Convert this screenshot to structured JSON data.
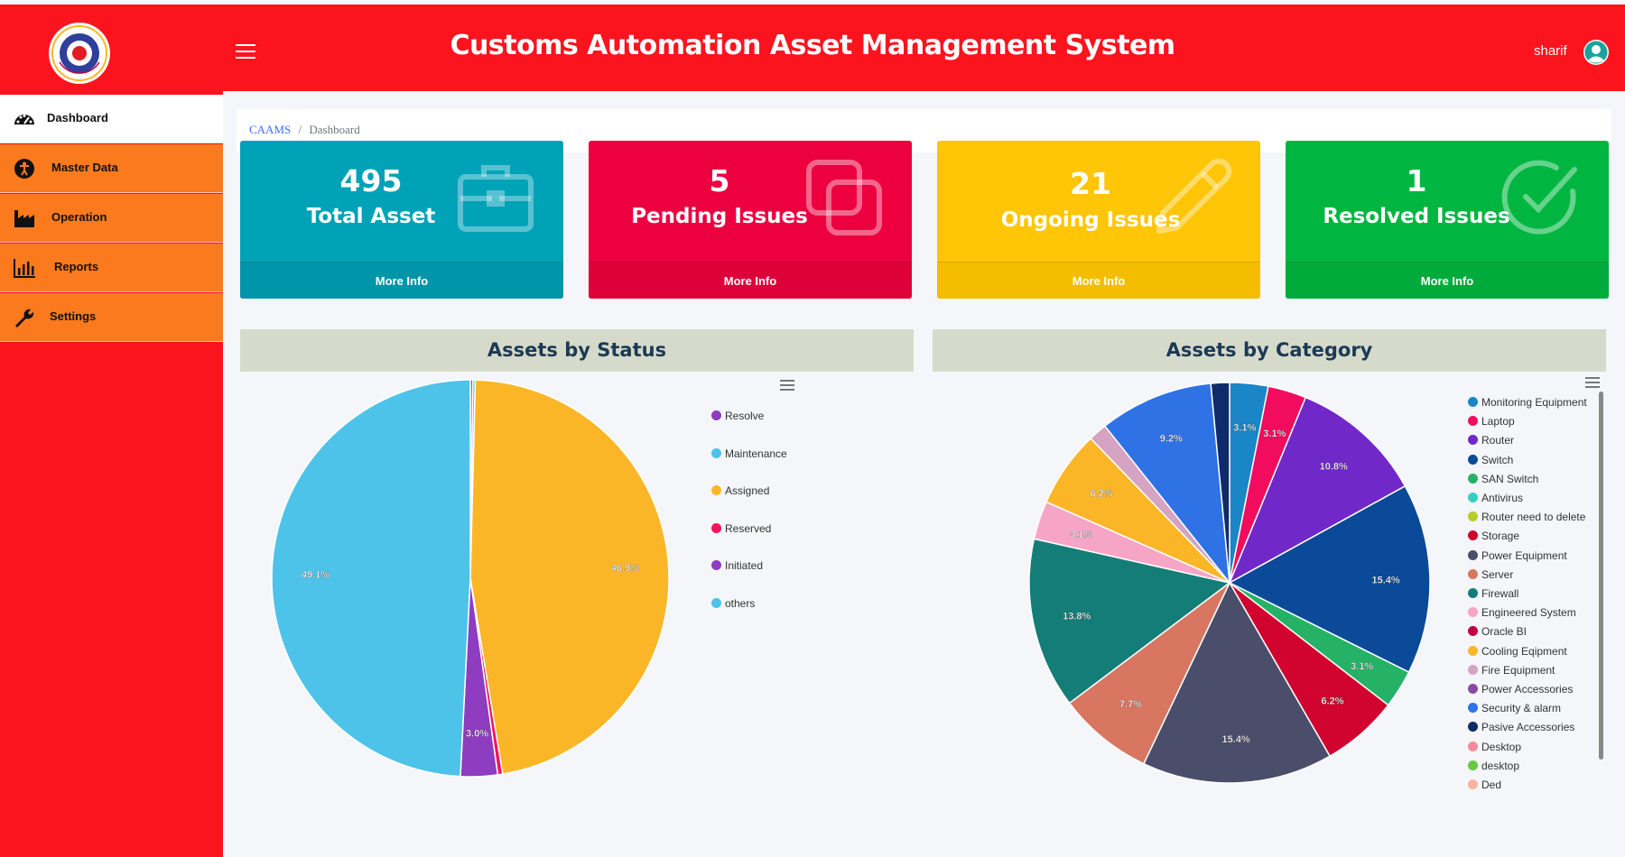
{
  "header": {
    "title": "Customs Automation Asset Management System",
    "user": "sharif"
  },
  "sidebar": {
    "items": [
      {
        "label": "Dashboard"
      },
      {
        "label": "Master Data"
      },
      {
        "label": "Operation"
      },
      {
        "label": "Reports"
      },
      {
        "label": "Settings"
      }
    ]
  },
  "breadcrumb": {
    "root": "CAAMS",
    "separator": "/",
    "current": "Dashboard"
  },
  "cards": [
    {
      "value": "495",
      "label": "Total Asset",
      "footer": "More Info",
      "color": "#00a2b8"
    },
    {
      "value": "5",
      "label": "Pending Issues",
      "footer": "More Info",
      "color": "#ec0040"
    },
    {
      "value": "21",
      "label": "Ongoing Issues",
      "footer": "More Info",
      "color": "#ffc507"
    },
    {
      "value": "1",
      "label": "Resolved Issues",
      "footer": "More Info",
      "color": "#00b640"
    }
  ],
  "chart_data": [
    {
      "type": "pie",
      "title": "Assets by Status",
      "categories": [
        "Resolve",
        "Maintenance",
        "Assigned",
        "Reserved",
        "Initiated",
        "others"
      ],
      "values": [
        0.2,
        0.2,
        46.9,
        0.4,
        3.0,
        49.1
      ],
      "value_labels": [
        "",
        "",
        "46.9%",
        "",
        "3.0%",
        "49.1%"
      ],
      "colors": [
        "#8e3cc0",
        "#4dc3ea",
        "#fbb628",
        "#f6135a",
        "#8e3cc0",
        "#4dc3ea"
      ],
      "legend": "right"
    },
    {
      "type": "pie",
      "title": "Assets by Category",
      "categories": [
        "Monitoring Equipment",
        "Laptop",
        "Router",
        "Switch",
        "SAN Switch",
        "Antivirus",
        "Router need to delete",
        "Storage",
        "Power Equipment",
        "Server",
        "Firewall",
        "Engineered System",
        "Oracle BI",
        "Cooling Eqipment",
        "Fire Equipment",
        "Power Accessories",
        "Security & alarm",
        "Pasive Accessories",
        "Desktop",
        "desktop",
        "Ded"
      ],
      "values": [
        3.1,
        3.1,
        10.8,
        15.4,
        3.1,
        0,
        0,
        6.2,
        15.4,
        7.7,
        13.8,
        3.1,
        0,
        6.2,
        1.5,
        0,
        9.2,
        1.5,
        0,
        0,
        0
      ],
      "value_labels": [
        "3.1%",
        "3.1%",
        "10.8%",
        "15.4%",
        "3.1%",
        "",
        "",
        "6.2%",
        "15.4%",
        "7.7%",
        "13.8%",
        "3.1%",
        "",
        "6.2%",
        "",
        "",
        "9.2%",
        "",
        "",
        "",
        ""
      ],
      "colors": [
        "#1a85c7",
        "#f10c5e",
        "#7128c9",
        "#0b4a99",
        "#25b267",
        "#33d1c4",
        "#b7cc2c",
        "#d0042e",
        "#4a4e6b",
        "#d87661",
        "#157d78",
        "#f7a5c6",
        "#c3003f",
        "#fbb628",
        "#d4a4c2",
        "#8a4a9e",
        "#2e72e6",
        "#0f2b6b",
        "#f58a9b",
        "#6ac840",
        "#f7b5a0"
      ],
      "legend": "right"
    }
  ]
}
